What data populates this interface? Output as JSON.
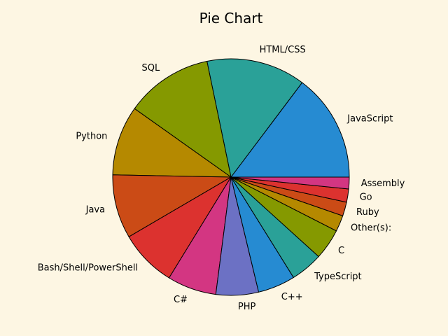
{
  "chart_data": {
    "type": "pie",
    "title": "Pie Chart",
    "start_angle_deg": 0,
    "direction": "counterclockwise",
    "slices": [
      {
        "label": "JavaScript",
        "value": 14.7,
        "color": "#268bd2"
      },
      {
        "label": "HTML/CSS",
        "value": 13.5,
        "color": "#2aa198"
      },
      {
        "label": "SQL",
        "value": 11.9,
        "color": "#859900"
      },
      {
        "label": "Python",
        "value": 9.5,
        "color": "#b58900"
      },
      {
        "label": "Java",
        "value": 8.7,
        "color": "#cb4b16"
      },
      {
        "label": "Bash/Shell/PowerShell",
        "value": 7.8,
        "color": "#dc322f"
      },
      {
        "label": "C#",
        "value": 6.7,
        "color": "#d33682"
      },
      {
        "label": "PHP",
        "value": 5.8,
        "color": "#6c71c4"
      },
      {
        "label": "C++",
        "value": 5.1,
        "color": "#268bd2"
      },
      {
        "label": "TypeScript",
        "value": 4.4,
        "color": "#2aa198"
      },
      {
        "label": "C",
        "value": 4.2,
        "color": "#859900"
      },
      {
        "label": "Other(s):",
        "value": 2.2,
        "color": "#b58900"
      },
      {
        "label": "Ruby",
        "value": 1.9,
        "color": "#cb4b16"
      },
      {
        "label": "Go",
        "value": 1.8,
        "color": "#dc322f"
      },
      {
        "label": "Assembly",
        "value": 1.6,
        "color": "#d33682"
      }
    ]
  }
}
